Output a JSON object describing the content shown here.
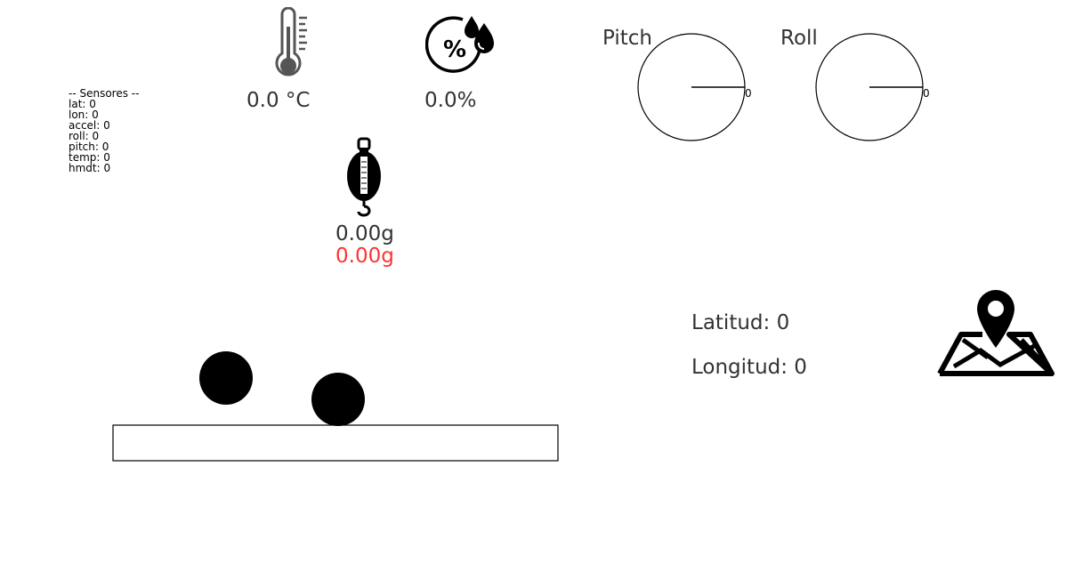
{
  "sensors": {
    "header": "-- Sensores --",
    "lines": [
      "lat: 0",
      "lon: 0",
      "accel: 0",
      "roll: 0",
      "pitch: 0",
      "temp: 0",
      "hmdt: 0"
    ]
  },
  "temperature": {
    "icon": "thermometer-icon",
    "value": "0.0 °C"
  },
  "humidity": {
    "icon": "humidity-icon",
    "value": "0.0%"
  },
  "weight": {
    "icon": "hanging-scale-icon",
    "value": "0.00g",
    "value_alt": "0.00g",
    "alt_color": "#ff3333"
  },
  "gauges": {
    "pitch": {
      "label": "Pitch",
      "tick_label": "0",
      "angle": 0
    },
    "roll": {
      "label": "Roll",
      "tick_label": "0",
      "angle": 0
    }
  },
  "location": {
    "latitude": "Latitud: 0",
    "longitude": "Longitud: 0",
    "icon": "map-pin-icon"
  }
}
